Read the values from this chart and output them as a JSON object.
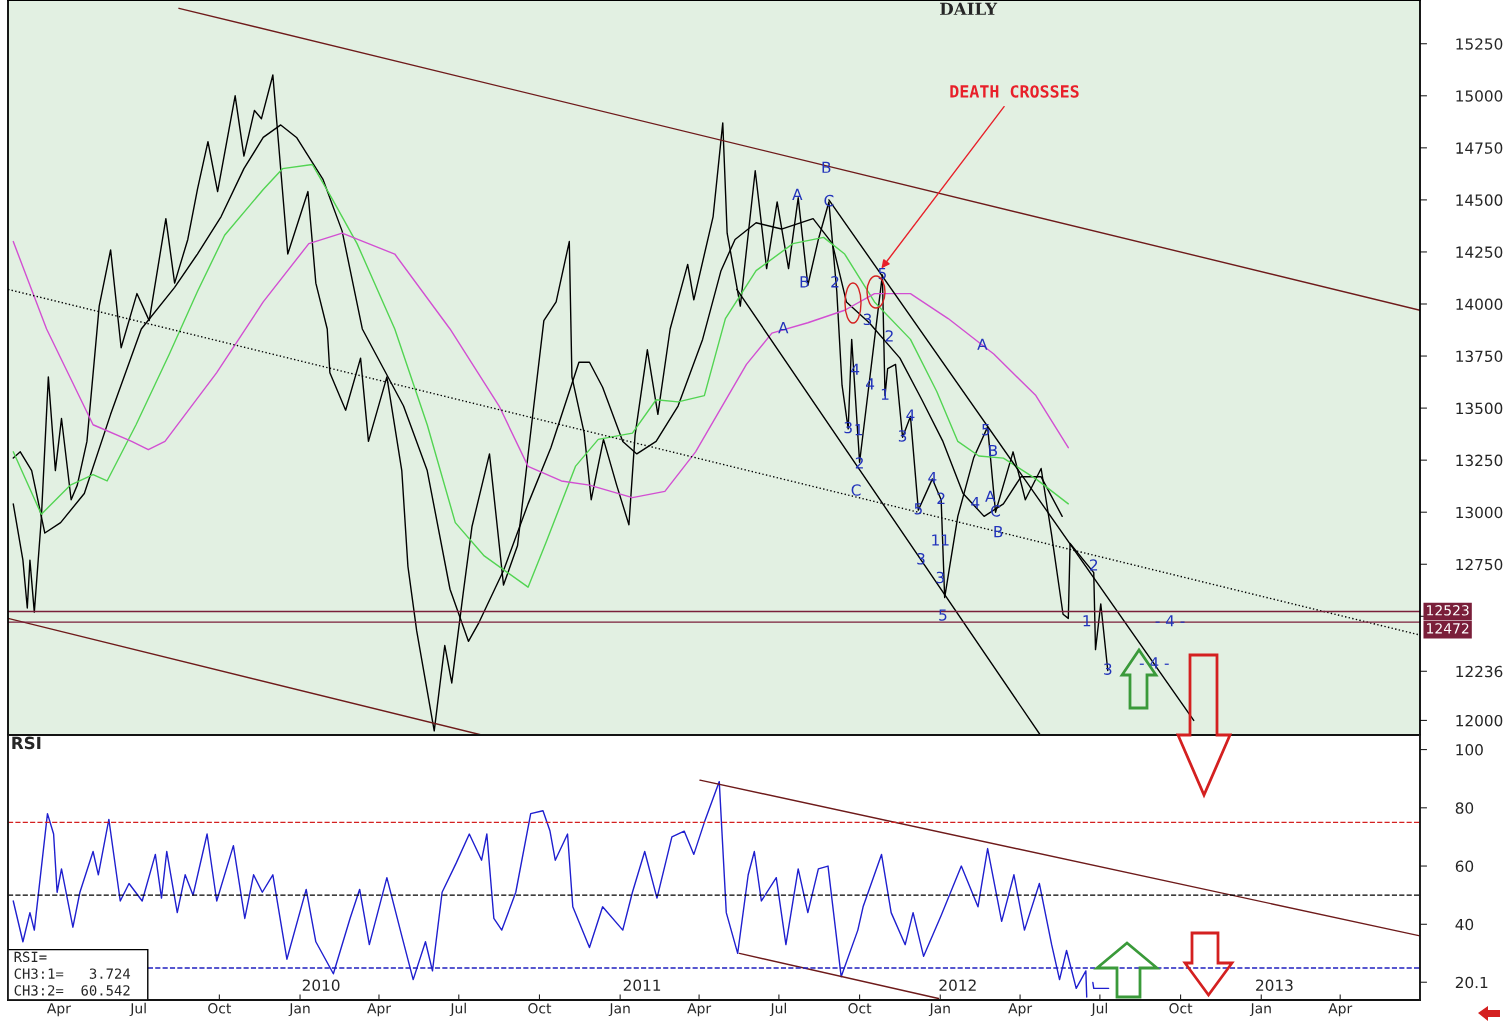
{
  "chart_data": [
    {
      "type": "line",
      "title": "DAILY",
      "xlim": [
        "2009-02-02",
        "2013-07-01"
      ],
      "ylim": [
        11930,
        15460
      ],
      "tick_labels": "y",
      "yticks": [
        12000,
        {
          "value": 12236,
          "label": "12236"
        },
        {
          "value": 12500,
          "label": null
        },
        12750,
        13000,
        13250,
        13500,
        13750,
        14000,
        14250,
        14500,
        14750,
        15000,
        15250
      ],
      "series": [
        {
          "color": "#000000",
          "x": [
            "2009-02-08",
            "2009-02-19",
            "2009-02-24",
            "2009-02-27",
            "2009-03-04",
            "2009-03-12",
            "2009-03-20",
            "2009-03-28",
            "2009-04-04",
            "2009-04-15",
            "2009-04-22",
            "2009-05-03",
            "2009-05-17",
            "2009-05-30",
            "2009-06-11",
            "2009-06-29",
            "2009-07-13",
            "2009-08-01",
            "2009-08-11",
            "2009-08-26",
            "2009-09-06",
            "2009-09-18",
            "2009-09-29",
            "2009-10-19",
            "2009-10-29",
            "2009-11-10",
            "2009-11-18",
            "2009-12-01",
            "2009-12-18",
            "2010-01-10",
            "2010-01-19",
            "2010-02-01",
            "2010-02-04",
            "2010-02-22",
            "2010-03-11",
            "2010-03-20",
            "2010-04-10",
            "2010-04-27",
            "2010-05-04",
            "2010-05-14",
            "2010-06-03",
            "2010-06-15",
            "2010-06-23",
            "2010-07-06",
            "2010-07-16",
            "2010-08-05",
            "2010-08-21",
            "2010-09-06",
            "2010-09-22",
            "2010-10-06",
            "2010-10-20",
            "2010-11-04",
            "2010-11-07",
            "2010-11-21",
            "2010-11-29",
            "2010-12-13",
            "2010-12-28",
            "2011-01-11",
            "2011-01-18",
            "2011-02-01",
            "2011-02-13",
            "2011-02-27",
            "2011-03-19",
            "2011-03-26",
            "2011-04-17",
            "2011-04-28",
            "2011-05-03",
            "2011-05-18",
            "2011-06-04",
            "2011-06-17",
            "2011-06-29",
            "2011-07-12",
            "2011-07-23",
            "2011-08-03",
            "2011-08-15",
            "2011-08-27",
            "2011-09-05",
            "2011-09-11",
            "2011-09-18",
            "2011-09-22",
            "2011-10-01",
            "2011-10-18",
            "2011-10-27",
            "2011-10-30",
            "2011-11-02",
            "2011-11-11",
            "2011-11-19",
            "2011-11-28",
            "2011-12-07",
            "2011-12-23",
            "2012-01-02",
            "2012-01-06",
            "2012-01-21",
            "2012-02-08",
            "2012-02-24",
            "2012-03-04",
            "2012-03-24",
            "2012-04-07",
            "2012-04-25",
            "2012-05-07",
            "2012-05-20",
            "2012-05-26",
            "2012-05-28",
            "2012-06-24",
            "2012-06-26",
            "2012-07-02",
            "2012-07-10"
          ],
          "values": [
            13040,
            12770,
            12540,
            12770,
            12520,
            12970,
            13650,
            13200,
            13450,
            13060,
            13130,
            13340,
            13990,
            14260,
            13790,
            14050,
            13920,
            14410,
            14100,
            14310,
            14550,
            14780,
            14540,
            15000,
            14710,
            14930,
            14890,
            15100,
            14240,
            14540,
            14100,
            13880,
            13670,
            13490,
            13740,
            13340,
            13650,
            13200,
            12740,
            12430,
            11950,
            12360,
            12180,
            12610,
            12930,
            13280,
            12650,
            12840,
            13420,
            13920,
            14010,
            14300,
            13650,
            13380,
            13060,
            13350,
            13130,
            12940,
            13370,
            13780,
            13470,
            13880,
            14190,
            14020,
            14420,
            14870,
            14340,
            13990,
            14640,
            14170,
            14490,
            14170,
            14510,
            14090,
            14310,
            14490,
            14060,
            13610,
            13400,
            13830,
            13240,
            13830,
            14140,
            13560,
            13690,
            13710,
            13360,
            13460,
            13010,
            13160,
            13060,
            12590,
            12980,
            13260,
            13410,
            13000,
            13290,
            13060,
            13210,
            12890,
            12510,
            12490,
            12850,
            12710,
            12340,
            12560,
            12240
          ]
        },
        {
          "color": "#000000",
          "x": [
            "2009-02-08",
            "2009-02-16",
            "2009-03-01",
            "2009-03-16",
            "2009-04-03",
            "2009-04-30",
            "2009-05-30",
            "2009-07-04",
            "2009-08-11",
            "2009-09-06",
            "2009-10-03",
            "2009-10-29",
            "2009-11-20",
            "2009-12-10",
            "2009-12-28",
            "2010-01-27",
            "2010-02-18",
            "2010-03-13",
            "2010-04-29",
            "2010-05-26",
            "2010-06-21",
            "2010-07-12",
            "2010-07-24",
            "2010-08-21",
            "2010-09-18",
            "2010-10-14",
            "2010-11-15",
            "2010-11-27",
            "2010-12-12",
            "2011-01-04",
            "2011-01-20",
            "2011-02-11",
            "2011-03-08",
            "2011-04-05",
            "2011-04-26",
            "2011-05-12",
            "2011-06-05",
            "2011-07-04",
            "2011-08-09",
            "2011-08-31",
            "2011-09-16",
            "2011-10-12",
            "2011-11-16",
            "2011-12-11",
            "2012-01-04",
            "2012-01-27",
            "2012-02-20",
            "2012-03-13",
            "2012-04-02",
            "2012-04-25",
            "2012-05-19"
          ],
          "values": [
            13260,
            13290,
            13200,
            12900,
            12950,
            13090,
            13470,
            13880,
            14080,
            14240,
            14420,
            14650,
            14800,
            14860,
            14800,
            14600,
            14350,
            13880,
            13510,
            13200,
            12630,
            12380,
            12470,
            12720,
            13040,
            13310,
            13720,
            13720,
            13600,
            13340,
            13280,
            13340,
            13510,
            13830,
            14160,
            14310,
            14390,
            14360,
            14410,
            14290,
            14010,
            13910,
            13740,
            13540,
            13340,
            13090,
            12980,
            13040,
            13170,
            13170,
            12980
          ]
        },
        {
          "color": "#52d452",
          "x": [
            "2009-02-08",
            "2009-03-12",
            "2009-04-14",
            "2009-05-10",
            "2009-05-26",
            "2009-06-28",
            "2009-08-05",
            "2009-09-06",
            "2009-10-07",
            "2009-11-20",
            "2009-12-12",
            "2010-01-15",
            "2010-02-06",
            "2010-03-07",
            "2010-04-19",
            "2010-05-26",
            "2010-06-27",
            "2010-07-30",
            "2010-09-18",
            "2010-10-09",
            "2010-11-11",
            "2010-12-07",
            "2011-01-15",
            "2011-02-11",
            "2011-03-08",
            "2011-04-07",
            "2011-05-01",
            "2011-06-05",
            "2011-07-17",
            "2011-08-21",
            "2011-09-14",
            "2011-10-18",
            "2011-11-28",
            "2011-12-28",
            "2012-01-21",
            "2012-02-14",
            "2012-03-13",
            "2012-04-19",
            "2012-05-26"
          ],
          "values": [
            13290,
            12990,
            13130,
            13180,
            13150,
            13420,
            13760,
            14060,
            14330,
            14550,
            14650,
            14670,
            14510,
            14290,
            13880,
            13420,
            12950,
            12790,
            12640,
            12860,
            13220,
            13350,
            13380,
            13540,
            13530,
            13560,
            13930,
            14160,
            14290,
            14320,
            14240,
            14010,
            13830,
            13580,
            13340,
            13270,
            13260,
            13160,
            13040
          ]
        },
        {
          "color": "#d24fd2",
          "x": [
            "2009-02-08",
            "2009-03-18",
            "2009-05-10",
            "2009-06-23",
            "2009-07-12",
            "2009-07-31",
            "2009-09-28",
            "2009-11-20",
            "2010-01-11",
            "2010-02-18",
            "2010-04-19",
            "2010-06-21",
            "2010-08-16",
            "2010-09-18",
            "2010-10-26",
            "2010-11-27",
            "2011-01-15",
            "2011-02-21",
            "2011-03-28",
            "2011-05-25",
            "2011-06-23",
            "2011-08-03",
            "2011-09-14",
            "2011-10-18",
            "2011-11-28",
            "2012-01-10",
            "2012-03-02",
            "2012-04-19",
            "2012-05-26"
          ],
          "values": [
            14300,
            13880,
            13420,
            13340,
            13300,
            13340,
            13670,
            14010,
            14290,
            14340,
            14240,
            13880,
            13510,
            13220,
            13150,
            13130,
            13070,
            13100,
            13290,
            13710,
            13860,
            13910,
            13970,
            14050,
            14050,
            13930,
            13760,
            13560,
            13310
          ]
        },
        {
          "color": "#6e1a1a",
          "x": [
            "2009-08-16",
            "2013-07-01"
          ],
          "values": [
            15420,
            13970
          ]
        },
        {
          "color": "#6e1a1a",
          "x": [
            "2009-02-02",
            "2010-07-27"
          ],
          "values": [
            12490,
            11930
          ]
        },
        {
          "color": "#000000",
          "line_style": "dotted",
          "x": [
            "2009-02-02",
            "2013-07-01"
          ],
          "values": [
            14070,
            12410
          ]
        },
        {
          "color": "#000000",
          "x": [
            "2011-05-14",
            "2012-04-24"
          ],
          "values": [
            14070,
            11930
          ]
        },
        {
          "color": "#000000",
          "x": [
            "2011-08-27",
            "2012-10-16"
          ],
          "values": [
            14500,
            12000
          ]
        }
      ],
      "ref_lines": [
        {
          "axis": "y",
          "value": 12523,
          "label": "12523",
          "color": "#7a1f3a"
        },
        {
          "axis": "y",
          "value": 12472,
          "label": "12472",
          "color": "#7a1f3a"
        }
      ],
      "annotations": [
        {
          "text": "DEATH CROSSES",
          "x": "2011-10-24",
          "y": 14160
        },
        {
          "text": "B",
          "x": "2011-08-24",
          "y": 14650
        },
        {
          "text": "C",
          "x": "2011-08-27",
          "y": 14490
        },
        {
          "text": "A",
          "x": "2011-07-22",
          "y": 14520
        },
        {
          "text": "B",
          "x": "2011-07-30",
          "y": 14100
        },
        {
          "text": "A",
          "x": "2011-07-06",
          "y": 13880
        },
        {
          "text": "C",
          "x": "2011-09-27",
          "y": 13100
        },
        {
          "text": "A",
          "x": "2012-02-18",
          "y": 13800
        },
        {
          "text": "B",
          "x": "2012-03-01",
          "y": 13290
        },
        {
          "text": "A",
          "x": "2012-02-27",
          "y": 13070
        },
        {
          "text": "C",
          "x": "2012-03-04",
          "y": 13000
        },
        {
          "text": "B",
          "x": "2012-03-07",
          "y": 12900
        },
        {
          "text": "5",
          "x": "2011-10-27",
          "y": 14140
        },
        {
          "text": "2",
          "x": "2011-09-03",
          "y": 14100
        },
        {
          "text": "3",
          "x": "2011-10-10",
          "y": 13920
        },
        {
          "text": "2",
          "x": "2011-11-04",
          "y": 13840
        },
        {
          "text": "4",
          "x": "2011-09-26",
          "y": 13680
        },
        {
          "text": "4",
          "x": "2011-10-13",
          "y": 13610
        },
        {
          "text": "1",
          "x": "2011-10-30",
          "y": 13560
        },
        {
          "text": "3",
          "x": "2011-09-18",
          "y": 13400
        },
        {
          "text": "1",
          "x": "2011-09-30",
          "y": 13390
        },
        {
          "text": "2",
          "x": "2011-10-01",
          "y": 13230
        },
        {
          "text": "4",
          "x": "2011-11-28",
          "y": 13460
        },
        {
          "text": "3",
          "x": "2011-11-19",
          "y": 13360
        },
        {
          "text": "4",
          "x": "2011-12-23",
          "y": 13160
        },
        {
          "text": "2",
          "x": "2012-01-02",
          "y": 13060
        },
        {
          "text": "5",
          "x": "2011-12-07",
          "y": 13010
        },
        {
          "text": "3",
          "x": "2011-12-10",
          "y": 12770
        },
        {
          "text": "11",
          "x": "2012-01-01",
          "y": 12860
        },
        {
          "text": "3",
          "x": "2012-01-01",
          "y": 12680
        },
        {
          "text": "5",
          "x": "2012-01-04",
          "y": 12500
        },
        {
          "text": "4",
          "x": "2012-02-10",
          "y": 13040
        },
        {
          "text": "5",
          "x": "2012-02-22",
          "y": 13390
        },
        {
          "text": "2",
          "x": "2012-06-24",
          "y": 12740
        },
        {
          "text": "1",
          "x": "2012-06-16",
          "y": 12472
        },
        {
          "text": "3",
          "x": "2012-07-10",
          "y": 12240
        },
        {
          "text": "- 4 -",
          "x": "2012-09-19",
          "y": 12472
        },
        {
          "text": "- 4 -",
          "x": "2012-09-01",
          "y": 12270
        }
      ]
    },
    {
      "type": "line",
      "title": "RSI",
      "xlim": [
        "2009-02-02",
        "2013-07-01"
      ],
      "ylim": [
        14,
        105
      ],
      "yticks": [
        {
          "value": 20.1,
          "label": "20.1"
        },
        40,
        60,
        80,
        100
      ],
      "x2lim": [
        "2009-02-02",
        "2013-07-01"
      ],
      "x2ticks": [
        {
          "value": "2010-01-25",
          "label": "2010"
        },
        {
          "value": "2011-01-26",
          "label": "2011"
        },
        {
          "value": "2012-01-21",
          "label": "2012"
        },
        {
          "value": "2013-01-16",
          "label": "2013"
        }
      ],
      "xticks": [
        {
          "value": "2009-04-01",
          "label": "Apr"
        },
        {
          "value": "2009-07-01",
          "label": "Jul"
        },
        {
          "value": "2009-10-01",
          "label": "Oct"
        },
        {
          "value": "2010-01-01",
          "label": "Jan"
        },
        {
          "value": "2010-04-01",
          "label": "Apr"
        },
        {
          "value": "2010-07-01",
          "label": "Jul"
        },
        {
          "value": "2010-10-01",
          "label": "Oct"
        },
        {
          "value": "2011-01-01",
          "label": "Jan"
        },
        {
          "value": "2011-04-01",
          "label": "Apr"
        },
        {
          "value": "2011-07-01",
          "label": "Jul"
        },
        {
          "value": "2011-10-01",
          "label": "Oct"
        },
        {
          "value": "2012-01-01",
          "label": "Jan"
        },
        {
          "value": "2012-04-01",
          "label": "Apr"
        },
        {
          "value": "2012-07-01",
          "label": "Jul"
        },
        {
          "value": "2012-10-01",
          "label": "Oct"
        },
        {
          "value": "2013-01-01",
          "label": "Jan"
        },
        {
          "value": "2013-04-01",
          "label": "Apr"
        }
      ],
      "series": [
        {
          "color": "#1f1fcf",
          "x": [
            "2009-02-08",
            "2009-02-19",
            "2009-02-27",
            "2009-03-04",
            "2009-03-19",
            "2009-03-26",
            "2009-03-30",
            "2009-04-04",
            "2009-04-17",
            "2009-04-25",
            "2009-05-10",
            "2009-05-16",
            "2009-05-28",
            "2009-06-10",
            "2009-06-20",
            "2009-07-05",
            "2009-07-20",
            "2009-07-27",
            "2009-08-02",
            "2009-08-14",
            "2009-08-23",
            "2009-09-01",
            "2009-09-17",
            "2009-09-28",
            "2009-10-17",
            "2009-10-30",
            "2009-11-09",
            "2009-11-19",
            "2009-12-01",
            "2009-12-17",
            "2010-01-08",
            "2010-01-19",
            "2010-02-08",
            "2010-02-27",
            "2010-03-10",
            "2010-03-21",
            "2010-04-10",
            "2010-04-27",
            "2010-05-10",
            "2010-05-24",
            "2010-06-01",
            "2010-06-12",
            "2010-06-28",
            "2010-07-13",
            "2010-07-27",
            "2010-08-02",
            "2010-08-10",
            "2010-08-19",
            "2010-09-04",
            "2010-09-21",
            "2010-10-05",
            "2010-10-13",
            "2010-10-19",
            "2010-11-02",
            "2010-11-08",
            "2010-11-27",
            "2010-12-12",
            "2011-01-04",
            "2011-01-15",
            "2011-01-29",
            "2011-02-12",
            "2011-03-01",
            "2011-03-15",
            "2011-03-26",
            "2011-04-07",
            "2011-04-24",
            "2011-05-02",
            "2011-05-15",
            "2011-05-27",
            "2011-06-03",
            "2011-06-11",
            "2011-06-28",
            "2011-07-09",
            "2011-07-23",
            "2011-08-03",
            "2011-08-15",
            "2011-08-26",
            "2011-09-10",
            "2011-09-29",
            "2011-10-05",
            "2011-10-26",
            "2011-11-06",
            "2011-11-22",
            "2011-12-01",
            "2011-12-13",
            "2012-01-02",
            "2012-01-25",
            "2012-02-13",
            "2012-02-24",
            "2012-03-11",
            "2012-03-25",
            "2012-04-06",
            "2012-04-23",
            "2012-05-07",
            "2012-05-16",
            "2012-05-24",
            "2012-06-04",
            "2012-06-15",
            "2012-06-16"
          ],
          "values": [
            48,
            34,
            44,
            38,
            78,
            71,
            51,
            59,
            39,
            51,
            65,
            57,
            76,
            48,
            54,
            48,
            64,
            49,
            65,
            44,
            57,
            50,
            71,
            48,
            67,
            42,
            57,
            51,
            57,
            28,
            52,
            34,
            23,
            42,
            52,
            33,
            56,
            36,
            21,
            34,
            24,
            51,
            61,
            71,
            62,
            71,
            42,
            38,
            51,
            78,
            79,
            72,
            62,
            71,
            46,
            32,
            46,
            38,
            51,
            65,
            49,
            70,
            72,
            64,
            75,
            89,
            44,
            30,
            57,
            65,
            48,
            56,
            33,
            59,
            44,
            59,
            60,
            22,
            38,
            46,
            64,
            44,
            33,
            44,
            29,
            43,
            60,
            46,
            66,
            41,
            57,
            38,
            54,
            33,
            21,
            31,
            18,
            24,
            15
          ]
        },
        {
          "color": "#1f1fcf",
          "x": [
            "2012-06-23",
            "2012-06-24",
            "2012-07-11"
          ],
          "values": [
            20,
            18,
            18
          ]
        },
        {
          "color": "#6e1a1a",
          "x": [
            "2011-04-02",
            "2013-07-01"
          ],
          "values": [
            89.5,
            36
          ]
        },
        {
          "color": "#6e1a1a",
          "x": [
            "2011-05-17",
            "2011-12-30"
          ],
          "values": [
            30,
            14.5
          ]
        }
      ],
      "ref_lines": [
        {
          "axis": "y",
          "value": 75,
          "color": "#d42020",
          "line_style": "dashed"
        },
        {
          "axis": "y",
          "value": 50,
          "color": "#000000",
          "line_style": "dashed"
        },
        {
          "axis": "y",
          "value": 25,
          "color": "#2020c0",
          "line_style": "dashed"
        }
      ],
      "annotations": [
        "RSI=",
        "CH3:1=   3.724",
        "CH3:2=  60.542"
      ]
    }
  ]
}
